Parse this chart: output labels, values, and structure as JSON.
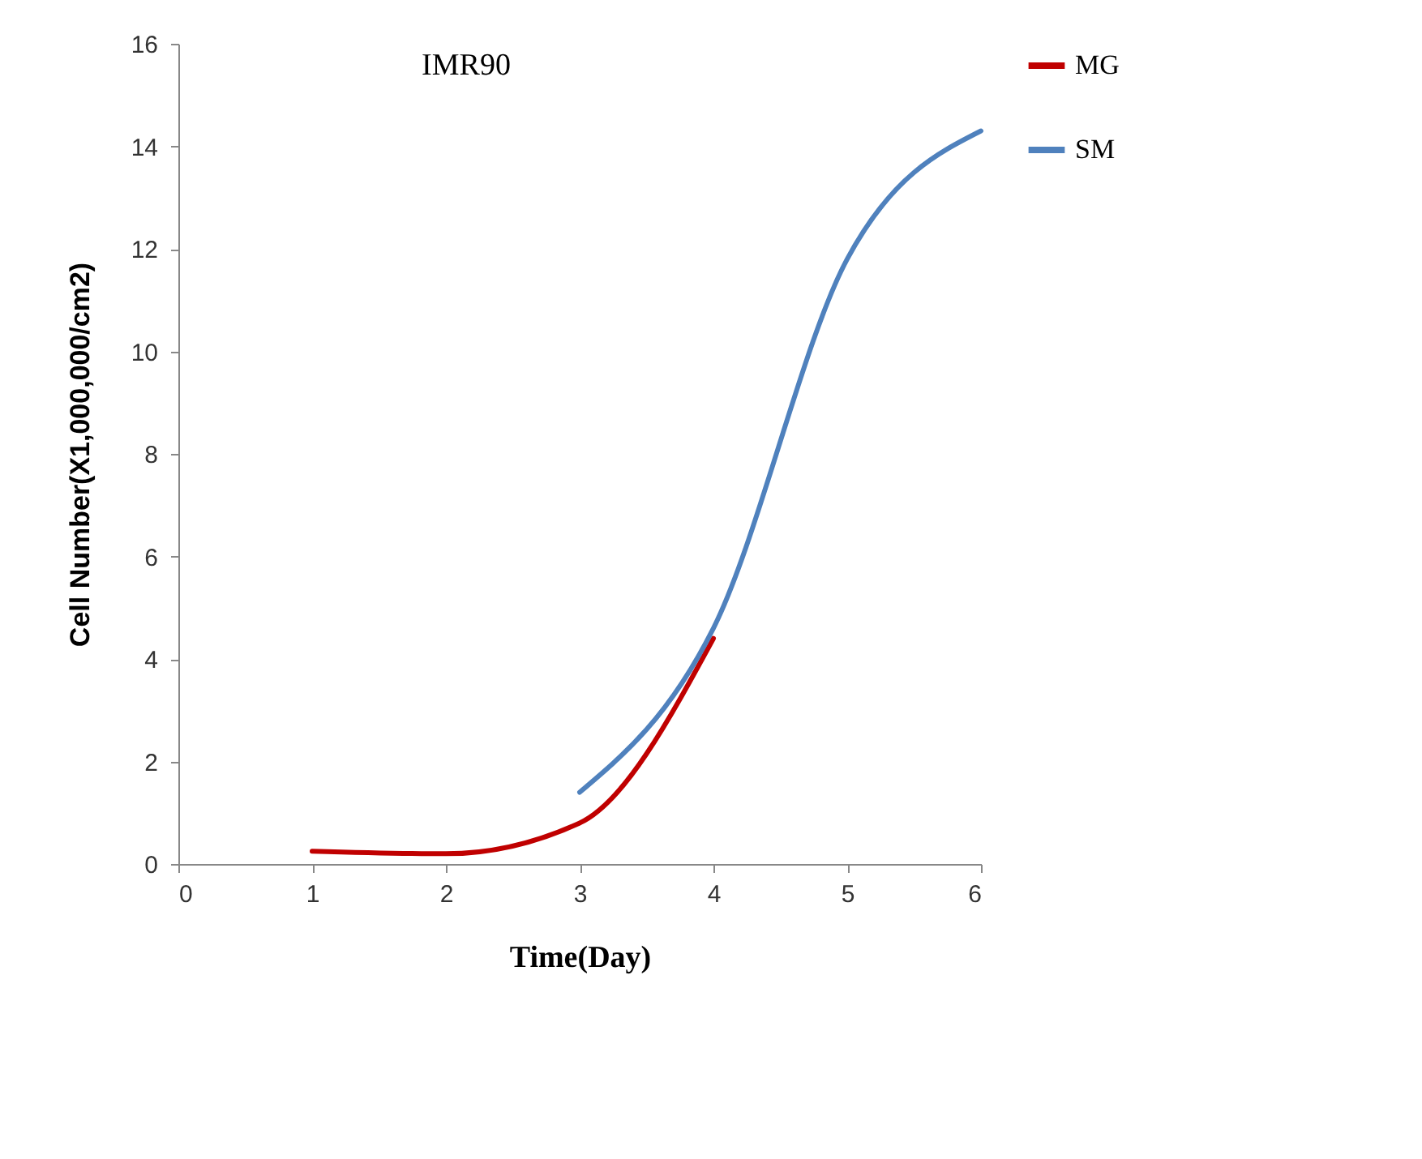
{
  "chart_data": {
    "type": "line",
    "title": "IMR90",
    "xlabel": "Time(Day)",
    "ylabel": "Cell Number(X1,000,000/cm2)",
    "xlim": [
      0,
      6
    ],
    "xticks": [
      0,
      1,
      2,
      3,
      4,
      5,
      6
    ],
    "ylim": [
      0,
      16
    ],
    "yticks": [
      0,
      2,
      4,
      6,
      8,
      10,
      12,
      14,
      16
    ],
    "grid": false,
    "legend": "right",
    "marker": "none",
    "line_style": "solid",
    "series": [
      {
        "name": "MG",
        "color": "#c00000",
        "x": [
          1,
          2,
          3,
          4
        ],
        "values": [
          0.25,
          0.2,
          0.8,
          4.4
        ]
      },
      {
        "name": "SM",
        "color": "#4f81bd",
        "x": [
          3,
          4,
          5,
          6
        ],
        "values": [
          1.4,
          4.6,
          11.8,
          14.3
        ]
      }
    ]
  }
}
